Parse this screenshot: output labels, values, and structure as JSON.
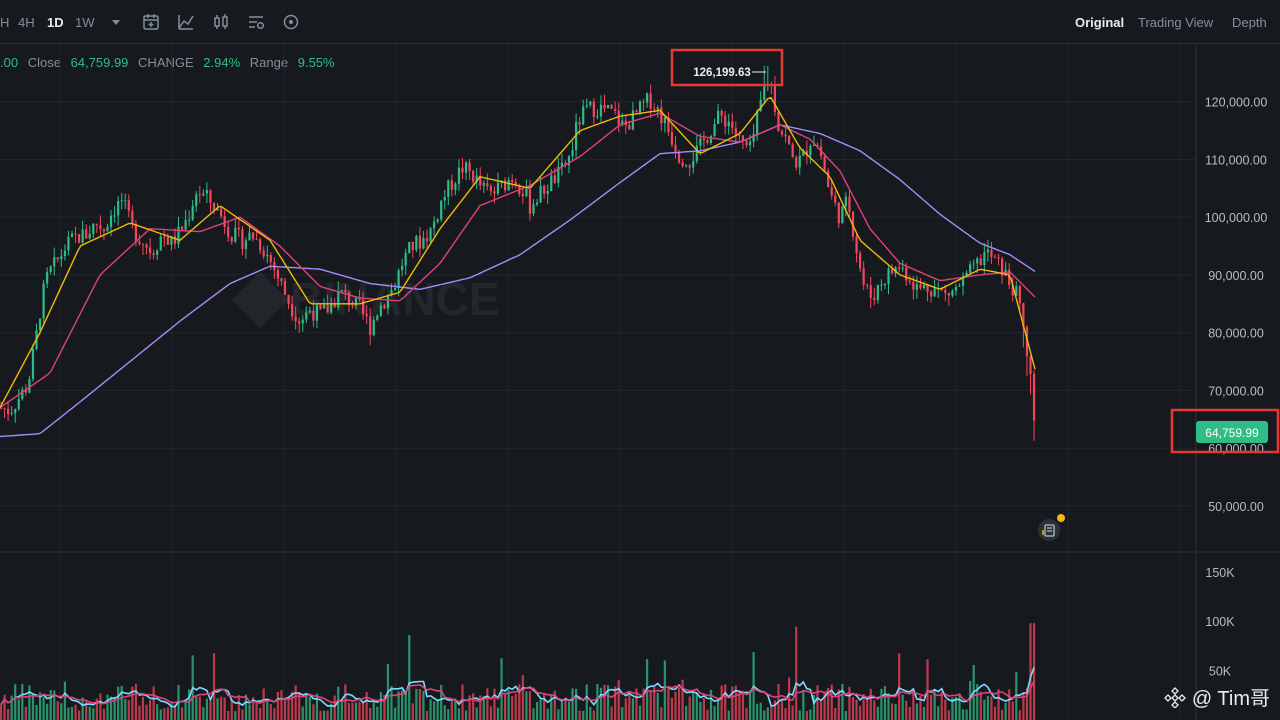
{
  "toolbar": {
    "timeframes": [
      {
        "label": "H",
        "active": false
      },
      {
        "label": "4H",
        "active": false
      },
      {
        "label": "1D",
        "active": true
      },
      {
        "label": "1W",
        "active": false
      }
    ],
    "tools": [
      "dropdown-caret-icon",
      "calendar-icon",
      "indicator-icon",
      "candle-type-icon",
      "settings-list-icon",
      "target-icon"
    ],
    "views": [
      {
        "label": "Original",
        "active": true
      },
      {
        "label": "Trading View",
        "active": false
      },
      {
        "label": "Depth",
        "active": false
      }
    ]
  },
  "stats": {
    "open_fragment": ".00",
    "close_label": "Close",
    "close_value": "64,759.99",
    "change_label": "CHANGE",
    "change_value": "2.94%",
    "range_label": "Range",
    "range_value": "9.55%"
  },
  "annotations": {
    "peak_label": "126,199.63",
    "current_price": "64,759.99"
  },
  "watermark": {
    "text": "@ Tim哥"
  },
  "colors": {
    "background": "#161a1e",
    "up": "#2ebd85",
    "down": "#f6465d",
    "ma_short": "#f0b90b",
    "ma_mid": "#e0407b",
    "ma_long": "#a78bfa",
    "highlight_box": "#e53935",
    "vol_ma_fast": "#7fdbff",
    "vol_ma_slow": "#e0407b"
  },
  "chart_data": [
    {
      "type": "candlestick",
      "title": "",
      "ylim": [
        42000,
        130000
      ],
      "y_ticks": [
        "120,000.00",
        "110,000.00",
        "100,000.00",
        "90,000.00",
        "80,000.00",
        "70,000.00",
        "60,000.00",
        "50,000.00"
      ],
      "y_tick_values": [
        120000,
        110000,
        100000,
        90000,
        80000,
        70000,
        60000,
        50000
      ],
      "price_path": [
        [
          0,
          67000
        ],
        [
          10,
          66500
        ],
        [
          20,
          69000
        ],
        [
          28,
          71000
        ],
        [
          36,
          79000
        ],
        [
          42,
          86000
        ],
        [
          48,
          90000
        ],
        [
          56,
          92000
        ],
        [
          66,
          95000
        ],
        [
          76,
          96500
        ],
        [
          86,
          97000
        ],
        [
          96,
          99000
        ],
        [
          104,
          98000
        ],
        [
          112,
          101000
        ],
        [
          122,
          103000
        ],
        [
          132,
          98000
        ],
        [
          142,
          96000
        ],
        [
          152,
          94000
        ],
        [
          162,
          97000
        ],
        [
          172,
          95500
        ],
        [
          180,
          97500
        ],
        [
          188,
          100000
        ],
        [
          196,
          104500
        ],
        [
          206,
          103500
        ],
        [
          214,
          102000
        ],
        [
          222,
          100000
        ],
        [
          232,
          97000
        ],
        [
          242,
          96000
        ],
        [
          252,
          97000
        ],
        [
          262,
          95000
        ],
        [
          272,
          92000
        ],
        [
          282,
          88000
        ],
        [
          290,
          85000
        ],
        [
          300,
          82000
        ],
        [
          310,
          84000
        ],
        [
          320,
          83000
        ],
        [
          330,
          84500
        ],
        [
          340,
          87000
        ],
        [
          350,
          85500
        ],
        [
          360,
          84000
        ],
        [
          370,
          81000
        ],
        [
          378,
          84000
        ],
        [
          386,
          86000
        ],
        [
          394,
          88000
        ],
        [
          402,
          92000
        ],
        [
          412,
          95000
        ],
        [
          422,
          96000
        ],
        [
          432,
          98000
        ],
        [
          442,
          103000
        ],
        [
          452,
          106000
        ],
        [
          462,
          108500
        ],
        [
          472,
          107500
        ],
        [
          482,
          105000
        ],
        [
          492,
          104000
        ],
        [
          502,
          105500
        ],
        [
          512,
          107000
        ],
        [
          522,
          105000
        ],
        [
          530,
          102000
        ],
        [
          540,
          104000
        ],
        [
          550,
          106000
        ],
        [
          560,
          107500
        ],
        [
          570,
          110500
        ],
        [
          578,
          116500
        ],
        [
          586,
          118500
        ],
        [
          596,
          119000
        ],
        [
          606,
          118500
        ],
        [
          616,
          117500
        ],
        [
          624,
          115500
        ],
        [
          632,
          117000
        ],
        [
          642,
          119000
        ],
        [
          650,
          120500
        ],
        [
          660,
          118000
        ],
        [
          670,
          114500
        ],
        [
          680,
          110500
        ],
        [
          690,
          110000
        ],
        [
          700,
          112000
        ],
        [
          710,
          115000
        ],
        [
          720,
          117500
        ],
        [
          730,
          116500
        ],
        [
          740,
          113000
        ],
        [
          750,
          111500
        ],
        [
          758,
          117500
        ],
        [
          766,
          124000
        ],
        [
          772,
          122500
        ],
        [
          778,
          116000
        ],
        [
          786,
          113500
        ],
        [
          794,
          109500
        ],
        [
          802,
          110000
        ],
        [
          812,
          114000
        ],
        [
          820,
          111500
        ],
        [
          830,
          104000
        ],
        [
          840,
          100000
        ],
        [
          848,
          103000
        ],
        [
          856,
          95000
        ],
        [
          864,
          88000
        ],
        [
          872,
          86000
        ],
        [
          880,
          88500
        ],
        [
          890,
          90500
        ],
        [
          900,
          91500
        ],
        [
          910,
          89500
        ],
        [
          918,
          87500
        ],
        [
          928,
          88000
        ],
        [
          936,
          87500
        ],
        [
          946,
          86500
        ],
        [
          956,
          87500
        ],
        [
          966,
          89500
        ],
        [
          976,
          91500
        ],
        [
          986,
          94000
        ],
        [
          994,
          92500
        ],
        [
          1002,
          91000
        ],
        [
          1010,
          88500
        ],
        [
          1018,
          86000
        ],
        [
          1024,
          80000
        ],
        [
          1030,
          72000
        ],
        [
          1034,
          68000
        ],
        [
          1036,
          64759.99
        ]
      ],
      "ma_short": [
        [
          0,
          67000
        ],
        [
          40,
          80000
        ],
        [
          80,
          95000
        ],
        [
          130,
          99000
        ],
        [
          180,
          96000
        ],
        [
          220,
          102000
        ],
        [
          270,
          96000
        ],
        [
          310,
          85000
        ],
        [
          360,
          85000
        ],
        [
          400,
          87000
        ],
        [
          440,
          98000
        ],
        [
          480,
          107000
        ],
        [
          530,
          105000
        ],
        [
          580,
          115000
        ],
        [
          620,
          117500
        ],
        [
          660,
          118500
        ],
        [
          700,
          111000
        ],
        [
          740,
          114500
        ],
        [
          770,
          121000
        ],
        [
          800,
          112000
        ],
        [
          830,
          107000
        ],
        [
          860,
          96000
        ],
        [
          900,
          90000
        ],
        [
          940,
          87500
        ],
        [
          980,
          91000
        ],
        [
          1010,
          90000
        ],
        [
          1036,
          73000
        ]
      ],
      "ma_mid": [
        [
          0,
          67000
        ],
        [
          50,
          73000
        ],
        [
          100,
          90000
        ],
        [
          150,
          98000
        ],
        [
          200,
          97500
        ],
        [
          240,
          100000
        ],
        [
          280,
          95000
        ],
        [
          320,
          88000
        ],
        [
          360,
          86000
        ],
        [
          400,
          85500
        ],
        [
          440,
          92000
        ],
        [
          480,
          102000
        ],
        [
          530,
          105500
        ],
        [
          580,
          110500
        ],
        [
          620,
          116000
        ],
        [
          660,
          118000
        ],
        [
          700,
          114000
        ],
        [
          740,
          113000
        ],
        [
          780,
          116000
        ],
        [
          810,
          113500
        ],
        [
          840,
          108000
        ],
        [
          870,
          98000
        ],
        [
          900,
          92000
        ],
        [
          940,
          89000
        ],
        [
          980,
          90000
        ],
        [
          1010,
          90500
        ],
        [
          1036,
          86000
        ]
      ],
      "ma_long": [
        [
          0,
          62000
        ],
        [
          40,
          62500
        ],
        [
          80,
          68000
        ],
        [
          130,
          75000
        ],
        [
          180,
          82000
        ],
        [
          230,
          88500
        ],
        [
          270,
          91500
        ],
        [
          320,
          91000
        ],
        [
          370,
          88500
        ],
        [
          420,
          87500
        ],
        [
          470,
          89500
        ],
        [
          520,
          93500
        ],
        [
          570,
          99500
        ],
        [
          620,
          106000
        ],
        [
          660,
          111000
        ],
        [
          700,
          111500
        ],
        [
          740,
          113000
        ],
        [
          780,
          116000
        ],
        [
          820,
          114500
        ],
        [
          860,
          111500
        ],
        [
          900,
          106500
        ],
        [
          940,
          100500
        ],
        [
          980,
          95500
        ],
        [
          1010,
          93500
        ],
        [
          1036,
          90500
        ]
      ],
      "peak": {
        "value": 126199.63
      },
      "current": {
        "value": 64759.99
      }
    },
    {
      "type": "bar",
      "title": "",
      "ylim": [
        0,
        170000
      ],
      "y_ticks": [
        "150K",
        "100K",
        "50K"
      ],
      "y_tick_values": [
        150000,
        100000,
        50000
      ]
    }
  ]
}
